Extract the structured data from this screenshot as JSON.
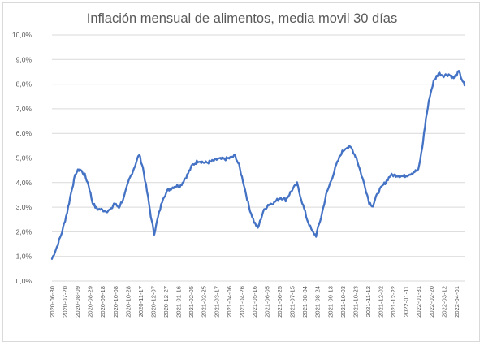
{
  "chart_data": {
    "type": "line",
    "title": "Inflación mensual de alimentos, media movil 30 días",
    "xlabel": "",
    "ylabel": "",
    "ylim": [
      0,
      10
    ],
    "yticks": [
      "0,0%",
      "1,0%",
      "2,0%",
      "3,0%",
      "4,0%",
      "5,0%",
      "6,0%",
      "7,0%",
      "8,0%",
      "9,0%",
      "10,0%"
    ],
    "grid": true,
    "legend": "none",
    "line_color": "#4472c4",
    "x_ticks": [
      "2020-06-30",
      "2020-07-20",
      "2020-08-09",
      "2020-08-29",
      "2020-09-18",
      "2020-10-08",
      "2020-10-28",
      "2020-11-17",
      "2020-12-07",
      "2020-12-27",
      "2021-01-16",
      "2021-02-05",
      "2021-02-25",
      "2021-03-17",
      "2021-04-06",
      "2021-04-26",
      "2021-05-16",
      "2021-06-05",
      "2021-06-25",
      "2021-07-15",
      "2021-08-04",
      "2021-08-24",
      "2021-09-13",
      "2021-10-03",
      "2021-10-23",
      "2021-11-12",
      "2021-12-02",
      "2021-12-22",
      "2022-01-11",
      "2022-01-31",
      "2022-02-20",
      "2022-03-12",
      "2022-04-01"
    ],
    "x_range": [
      "2020-06-30",
      "2022-04-14"
    ],
    "series": [
      {
        "points": [
          [
            "2020-06-30",
            0.9
          ],
          [
            "2020-07-08",
            1.4
          ],
          [
            "2020-07-16",
            2.0
          ],
          [
            "2020-07-24",
            2.8
          ],
          [
            "2020-08-01",
            3.8
          ],
          [
            "2020-08-07",
            4.4
          ],
          [
            "2020-08-13",
            4.55
          ],
          [
            "2020-08-21",
            4.3
          ],
          [
            "2020-08-27",
            3.9
          ],
          [
            "2020-09-02",
            3.2
          ],
          [
            "2020-09-08",
            2.95
          ],
          [
            "2020-09-16",
            2.9
          ],
          [
            "2020-09-24",
            2.85
          ],
          [
            "2020-10-02",
            2.9
          ],
          [
            "2020-10-06",
            3.15
          ],
          [
            "2020-10-14",
            3.0
          ],
          [
            "2020-10-22",
            3.4
          ],
          [
            "2020-10-30",
            4.1
          ],
          [
            "2020-11-07",
            4.6
          ],
          [
            "2020-11-15",
            5.15
          ],
          [
            "2020-11-21",
            4.6
          ],
          [
            "2020-11-29",
            3.4
          ],
          [
            "2020-12-05",
            2.4
          ],
          [
            "2020-12-09",
            1.95
          ],
          [
            "2020-12-15",
            2.6
          ],
          [
            "2020-12-23",
            3.4
          ],
          [
            "2020-12-31",
            3.7
          ],
          [
            "2021-01-10",
            3.85
          ],
          [
            "2021-01-20",
            3.9
          ],
          [
            "2021-01-30",
            4.3
          ],
          [
            "2021-02-07",
            4.7
          ],
          [
            "2021-02-17",
            4.9
          ],
          [
            "2021-02-27",
            4.8
          ],
          [
            "2021-03-09",
            4.85
          ],
          [
            "2021-03-19",
            4.95
          ],
          [
            "2021-03-29",
            4.95
          ],
          [
            "2021-04-08",
            5.0
          ],
          [
            "2021-04-16",
            5.1
          ],
          [
            "2021-04-22",
            4.7
          ],
          [
            "2021-04-30",
            3.9
          ],
          [
            "2021-05-08",
            3.0
          ],
          [
            "2021-05-16",
            2.4
          ],
          [
            "2021-05-22",
            2.15
          ],
          [
            "2021-05-30",
            2.8
          ],
          [
            "2021-06-07",
            3.1
          ],
          [
            "2021-06-17",
            3.2
          ],
          [
            "2021-06-27",
            3.4
          ],
          [
            "2021-07-05",
            3.3
          ],
          [
            "2021-07-15",
            3.7
          ],
          [
            "2021-07-23",
            3.95
          ],
          [
            "2021-07-31",
            3.2
          ],
          [
            "2021-08-08",
            2.5
          ],
          [
            "2021-08-16",
            2.0
          ],
          [
            "2021-08-22",
            1.85
          ],
          [
            "2021-08-30",
            2.6
          ],
          [
            "2021-09-07",
            3.5
          ],
          [
            "2021-09-15",
            4.1
          ],
          [
            "2021-09-23",
            4.7
          ],
          [
            "2021-10-01",
            5.2
          ],
          [
            "2021-10-09",
            5.45
          ],
          [
            "2021-10-17",
            5.4
          ],
          [
            "2021-10-25",
            5.0
          ],
          [
            "2021-11-02",
            4.3
          ],
          [
            "2021-11-08",
            3.8
          ],
          [
            "2021-11-14",
            3.2
          ],
          [
            "2021-11-20",
            3.05
          ],
          [
            "2021-11-28",
            3.6
          ],
          [
            "2021-12-08",
            3.95
          ],
          [
            "2021-12-18",
            4.3
          ],
          [
            "2021-12-28",
            4.3
          ],
          [
            "2022-01-07",
            4.25
          ],
          [
            "2022-01-17",
            4.35
          ],
          [
            "2022-01-25",
            4.45
          ],
          [
            "2022-01-31",
            4.5
          ],
          [
            "2022-02-06",
            5.4
          ],
          [
            "2022-02-12",
            6.6
          ],
          [
            "2022-02-18",
            7.5
          ],
          [
            "2022-02-24",
            8.1
          ],
          [
            "2022-03-04",
            8.45
          ],
          [
            "2022-03-12",
            8.35
          ],
          [
            "2022-03-20",
            8.4
          ],
          [
            "2022-03-28",
            8.25
          ],
          [
            "2022-04-05",
            8.5
          ],
          [
            "2022-04-10",
            8.2
          ],
          [
            "2022-04-14",
            7.95
          ]
        ]
      }
    ]
  }
}
